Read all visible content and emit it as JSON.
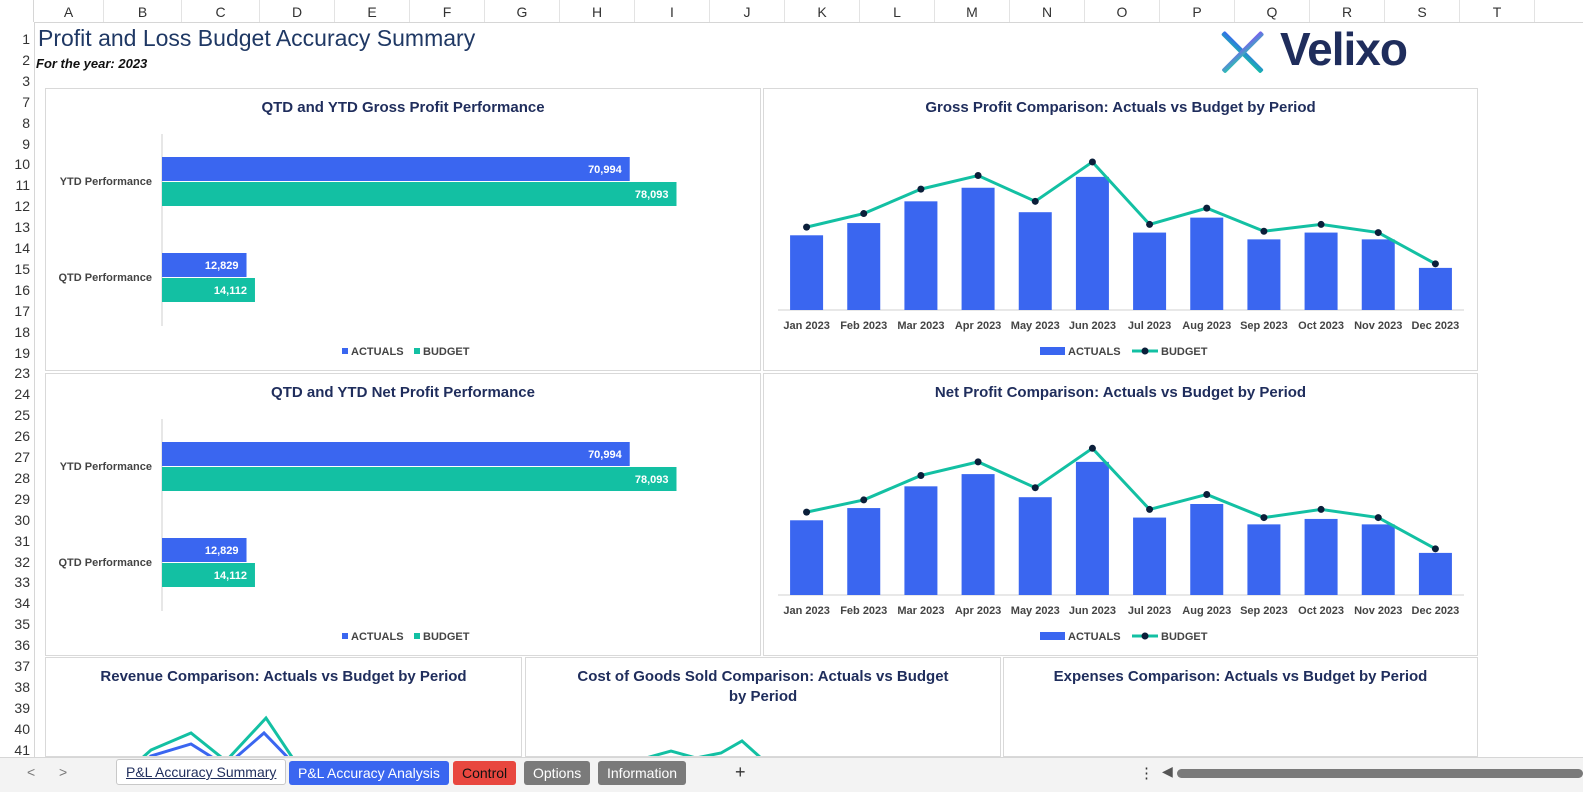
{
  "sheet": {
    "columns": [
      "A",
      "B",
      "C",
      "D",
      "E",
      "F",
      "G",
      "H",
      "I",
      "J",
      "K",
      "L",
      "M",
      "N",
      "O",
      "P",
      "Q",
      "R",
      "S",
      "T"
    ],
    "rows": [
      "1",
      "2",
      "3",
      "7",
      "8",
      "9",
      "10",
      "11",
      "12",
      "13",
      "14",
      "15",
      "16",
      "17",
      "18",
      "19",
      "23",
      "24",
      "25",
      "26",
      "27",
      "28",
      "29",
      "30",
      "31",
      "32",
      "33",
      "34",
      "35",
      "36",
      "37",
      "38",
      "39",
      "40",
      "41"
    ]
  },
  "report": {
    "title": "Profit and Loss Budget Accuracy Summary",
    "subtitle": "For the year: 2023",
    "logo_text": "Velixo"
  },
  "colors": {
    "actuals": "#3a66f0",
    "budget": "#13c0a3",
    "title": "#1f2d5c",
    "point": "#0b1f3a"
  },
  "panels": {
    "qtd_ytd_gross": {
      "title": "QTD and YTD Gross Profit Performance",
      "categories": [
        "YTD Performance",
        "QTD Performance"
      ],
      "legend": [
        "ACTUALS",
        "BUDGET"
      ]
    },
    "gross_comparison": {
      "title": "Gross Profit Comparison: Actuals vs Budget by Period",
      "legend": [
        "ACTUALS",
        "BUDGET"
      ]
    },
    "qtd_ytd_net": {
      "title": "QTD and YTD Net Profit Performance",
      "categories": [
        "YTD Performance",
        "QTD Performance"
      ],
      "legend": [
        "ACTUALS",
        "BUDGET"
      ]
    },
    "net_comparison": {
      "title": "Net Profit Comparison: Actuals vs Budget by Period",
      "legend": [
        "ACTUALS",
        "BUDGET"
      ]
    },
    "revenue_comparison": {
      "title": "Revenue Comparison: Actuals vs Budget by Period"
    },
    "cogs_comparison": {
      "title_line1": "Cost of Goods Sold Comparison: Actuals vs Budget",
      "title_line2": "by Period"
    },
    "expenses_comparison": {
      "title": "Expenses Comparison: Actuals vs Budget by Period"
    }
  },
  "chart_data": [
    {
      "type": "bar",
      "title": "QTD and YTD Gross Profit Performance",
      "orientation": "horizontal",
      "categories": [
        "YTD Performance",
        "QTD Performance"
      ],
      "series": [
        {
          "name": "ACTUALS",
          "values": [
            70994,
            12829
          ],
          "labels": [
            "70,994",
            "12,829"
          ]
        },
        {
          "name": "BUDGET",
          "values": [
            78093,
            14112
          ],
          "labels": [
            "78,093",
            "14,112"
          ]
        }
      ],
      "xlim": [
        0,
        85000
      ],
      "legend": "bottom",
      "grid": false
    },
    {
      "type": "bar",
      "title": "Gross Profit Comparison: Actuals vs Budget by Period",
      "categories": [
        "Jan 2023",
        "Feb 2023",
        "Mar 2023",
        "Apr 2023",
        "May 2023",
        "Jun 2023",
        "Jul 2023",
        "Aug 2023",
        "Sep 2023",
        "Oct 2023",
        "Nov 2023",
        "Dec 2023"
      ],
      "series": [
        {
          "name": "ACTUALS",
          "type": "bar",
          "values": [
            5.5,
            6.4,
            8.0,
            9.0,
            7.2,
            9.8,
            5.7,
            6.8,
            5.2,
            5.7,
            5.2,
            3.1
          ]
        },
        {
          "name": "BUDGET",
          "type": "line",
          "values": [
            6.1,
            7.1,
            8.9,
            9.9,
            8.0,
            10.9,
            6.3,
            7.5,
            5.8,
            6.3,
            5.7,
            3.4
          ]
        }
      ],
      "ylim": [
        0,
        12
      ],
      "legend": "bottom",
      "grid": false
    },
    {
      "type": "bar",
      "title": "QTD and YTD Net Profit Performance",
      "orientation": "horizontal",
      "categories": [
        "YTD Performance",
        "QTD Performance"
      ],
      "series": [
        {
          "name": "ACTUALS",
          "values": [
            70994,
            12829
          ],
          "labels": [
            "70,994",
            "12,829"
          ]
        },
        {
          "name": "BUDGET",
          "values": [
            78093,
            14112
          ],
          "labels": [
            "78,093",
            "14,112"
          ]
        }
      ],
      "xlim": [
        0,
        85000
      ],
      "legend": "bottom",
      "grid": false
    },
    {
      "type": "bar",
      "title": "Net Profit Comparison: Actuals vs Budget by Period",
      "categories": [
        "Jan 2023",
        "Feb 2023",
        "Mar 2023",
        "Apr 2023",
        "May 2023",
        "Jun 2023",
        "Jul 2023",
        "Aug 2023",
        "Sep 2023",
        "Oct 2023",
        "Nov 2023",
        "Dec 2023"
      ],
      "series": [
        {
          "name": "ACTUALS",
          "type": "bar",
          "values": [
            5.5,
            6.4,
            8.0,
            8.9,
            7.2,
            9.8,
            5.7,
            6.7,
            5.2,
            5.6,
            5.2,
            3.1
          ]
        },
        {
          "name": "BUDGET",
          "type": "line",
          "values": [
            6.1,
            7.0,
            8.8,
            9.8,
            7.9,
            10.8,
            6.3,
            7.4,
            5.7,
            6.3,
            5.7,
            3.4
          ]
        }
      ],
      "ylim": [
        0,
        12
      ],
      "legend": "bottom",
      "grid": false
    }
  ],
  "tabs": {
    "items": [
      {
        "label": "P&L Accuracy Summary",
        "bg": "#ffffff",
        "fg": "#1f2d5c",
        "active": true
      },
      {
        "label": "P&L Accuracy Analysis",
        "bg": "#3a66f0",
        "fg": "#ffffff"
      },
      {
        "label": "Control",
        "bg": "#e8473f",
        "fg": "#111111"
      },
      {
        "label": "Options",
        "bg": "#7a7a7a",
        "fg": "#ffffff"
      },
      {
        "label": "Information",
        "bg": "#7a7a7a",
        "fg": "#ffffff"
      }
    ],
    "add_label": "+",
    "more_label": "⋮",
    "prev_label": "<",
    "next_label": ">"
  }
}
